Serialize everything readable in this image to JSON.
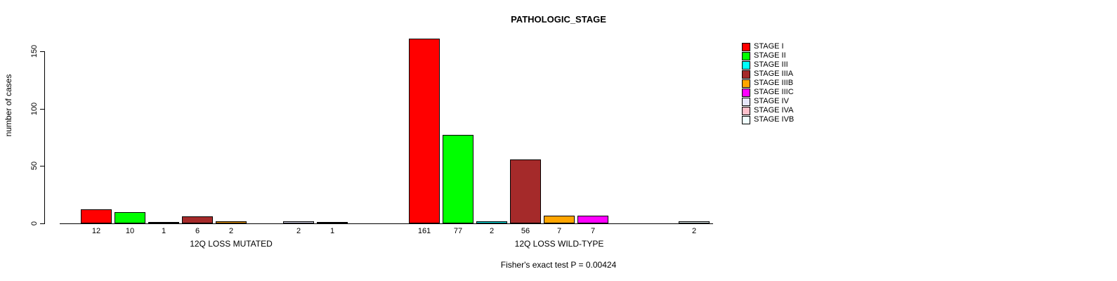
{
  "chart_data": {
    "type": "bar",
    "title": "PATHOLOGIC_STAGE",
    "xlabel": "",
    "ylabel": "number of cases",
    "ylim": [
      0,
      165
    ],
    "yticks": [
      0,
      50,
      100,
      150
    ],
    "grid": false,
    "legend_position": "right",
    "series": [
      "STAGE I",
      "STAGE II",
      "STAGE III",
      "STAGE IIIA",
      "STAGE IIIB",
      "STAGE IIIC",
      "STAGE IV",
      "STAGE IVA",
      "STAGE IVB"
    ],
    "colors": [
      "#ff0000",
      "#00ff00",
      "#00ffff",
      "#a52a2a",
      "#ffa500",
      "#ff00ff",
      "#e6e6fa",
      "#ffc0cb",
      "#f0ffff"
    ],
    "groups": [
      {
        "label": "12Q LOSS MUTATED",
        "values": [
          12,
          10,
          1,
          6,
          2,
          0,
          2,
          1,
          0
        ]
      },
      {
        "label": "12Q LOSS WILD-TYPE",
        "values": [
          161,
          77,
          2,
          56,
          7,
          7,
          0,
          0,
          2
        ]
      }
    ],
    "annotation": "Fisher's exact test P = 0.00424"
  }
}
